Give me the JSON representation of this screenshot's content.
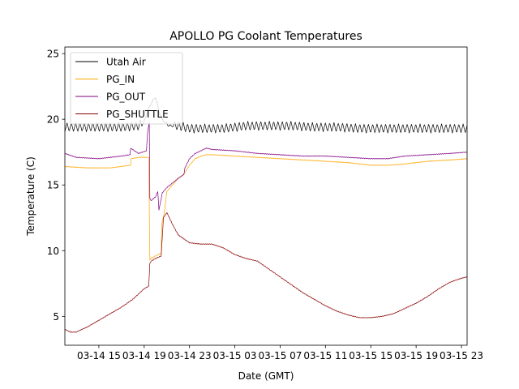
{
  "chart_data": {
    "type": "line",
    "title": "APOLLO PG Coolant Temperatures",
    "xlabel": "Date (GMT)",
    "ylabel": "Temperature (C)",
    "x_unit": "hours since 03-14 12:00 GMT",
    "xlim": [
      0,
      35.5
    ],
    "ylim": [
      2.8,
      25.5
    ],
    "x_ticks": [
      {
        "value": 3,
        "label": "03-14 15"
      },
      {
        "value": 7,
        "label": "03-14 19"
      },
      {
        "value": 11,
        "label": "03-14 23"
      },
      {
        "value": 15,
        "label": "03-15 03"
      },
      {
        "value": 19,
        "label": "03-15 07"
      },
      {
        "value": 23,
        "label": "03-15 11"
      },
      {
        "value": 27,
        "label": "03-15 15"
      },
      {
        "value": 31,
        "label": "03-15 19"
      },
      {
        "value": 35,
        "label": "03-15 23"
      }
    ],
    "y_ticks": [
      {
        "value": 5,
        "label": "5"
      },
      {
        "value": 10,
        "label": "10"
      },
      {
        "value": 15,
        "label": "15"
      },
      {
        "value": 20,
        "label": "20"
      },
      {
        "value": 25,
        "label": "25"
      }
    ],
    "legend_position": "upper-left",
    "series": [
      {
        "name": "Utah Air",
        "color": "#000000",
        "x": [
          0,
          5,
          6.5,
          7.0,
          7.3,
          7.6,
          8.0,
          8.3,
          8.6,
          8.8,
          9.2,
          10,
          11,
          13,
          14,
          16,
          18,
          20,
          22,
          24,
          26,
          28,
          30,
          32,
          34,
          35.5
        ],
        "y": [
          19.4,
          19.4,
          19.5,
          19.8,
          20.6,
          21.2,
          21.7,
          20.6,
          20.0,
          19.8,
          19.5,
          19.5,
          19.3,
          19.3,
          19.3,
          19.5,
          19.5,
          19.5,
          19.4,
          19.4,
          19.3,
          19.3,
          19.3,
          19.3,
          19.3,
          19.3
        ],
        "oscillation_amplitude": 0.35,
        "oscillation_period": 0.38
      },
      {
        "name": "PG_IN",
        "color": "#ffa500",
        "x": [
          0,
          2,
          4,
          5.8,
          5.85,
          6.5,
          7.4,
          7.5,
          7.6,
          8.0,
          8.5,
          8.55,
          8.8,
          9.0,
          10,
          10.5,
          11,
          11.5,
          12,
          12.5,
          13,
          15,
          17,
          19,
          21,
          23,
          25,
          27,
          28.5,
          30,
          32,
          34,
          35.5
        ],
        "y": [
          16.4,
          16.3,
          16.3,
          16.5,
          17.0,
          17.1,
          17.1,
          9.3,
          9.4,
          9.6,
          9.8,
          12.0,
          13.0,
          14.5,
          15.5,
          15.8,
          16.5,
          17.0,
          17.2,
          17.3,
          17.3,
          17.2,
          17.1,
          17.0,
          16.9,
          16.8,
          16.7,
          16.5,
          16.5,
          16.6,
          16.8,
          16.9,
          17.0
        ]
      },
      {
        "name": "PG_OUT",
        "color": "#800080",
        "x": [
          0,
          1,
          3,
          5,
          5.75,
          5.8,
          6.5,
          7.2,
          7.3,
          7.45,
          7.5,
          7.6,
          8.0,
          8.2,
          8.3,
          8.6,
          9.0,
          10,
          10.5,
          10.6,
          11,
          11.5,
          12,
          12.5,
          13,
          15,
          17,
          19,
          21,
          23,
          25,
          27,
          28.5,
          30,
          32,
          34,
          35.5
        ],
        "y": [
          17.4,
          17.1,
          17.0,
          17.2,
          17.3,
          17.8,
          17.4,
          17.6,
          19.0,
          19.8,
          14.0,
          13.8,
          14.1,
          14.5,
          13.1,
          14.4,
          14.8,
          15.5,
          15.8,
          16.3,
          17.0,
          17.4,
          17.6,
          17.8,
          17.7,
          17.6,
          17.4,
          17.3,
          17.2,
          17.2,
          17.1,
          17.0,
          17.0,
          17.2,
          17.3,
          17.4,
          17.5
        ]
      },
      {
        "name": "PG_SHUTTLE",
        "color": "#8b0000",
        "x": [
          0,
          0.5,
          1,
          2,
          3,
          4,
          5,
          6,
          7,
          7.4,
          7.5,
          7.6,
          8.0,
          8.5,
          8.7,
          9.0,
          9.5,
          10,
          11,
          12,
          13,
          14,
          15,
          16,
          17,
          18,
          19,
          20,
          21,
          22,
          23,
          24,
          25,
          26,
          27,
          28,
          29,
          30,
          31,
          32,
          33,
          34,
          35,
          35.5
        ],
        "y": [
          4.0,
          3.8,
          3.8,
          4.2,
          4.7,
          5.2,
          5.7,
          6.3,
          7.1,
          7.3,
          9.0,
          9.2,
          9.4,
          9.6,
          12.5,
          12.9,
          12.0,
          11.2,
          10.6,
          10.5,
          10.5,
          10.2,
          9.7,
          9.4,
          9.2,
          8.6,
          8.0,
          7.4,
          6.8,
          6.3,
          5.8,
          5.4,
          5.1,
          4.9,
          4.9,
          5.0,
          5.2,
          5.6,
          6.0,
          6.5,
          7.1,
          7.6,
          7.9,
          8.0
        ]
      }
    ]
  }
}
